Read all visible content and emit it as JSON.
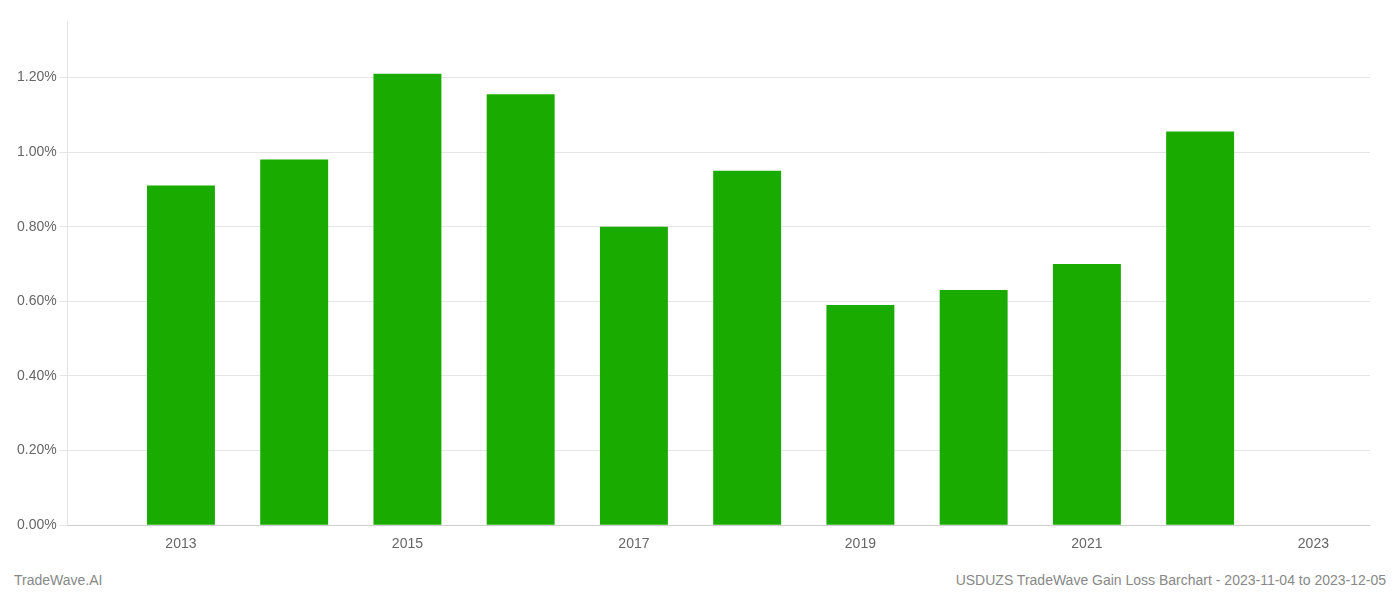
{
  "chart_data": {
    "type": "bar",
    "x": [
      2013,
      2014,
      2015,
      2016,
      2017,
      2018,
      2019,
      2020,
      2021,
      2022
    ],
    "values": [
      0.0091,
      0.0098,
      0.0121,
      0.01155,
      0.008,
      0.0095,
      0.0059,
      0.0063,
      0.007,
      0.01055
    ],
    "color": "#1aab00",
    "xlim": [
      2012.0,
      2023.5
    ],
    "xticks": [
      2013,
      2015,
      2017,
      2019,
      2021,
      2023
    ],
    "ylim": [
      0,
      0.0135
    ],
    "yticks": [
      {
        "value": 0.0,
        "label": "0.00%"
      },
      {
        "value": 0.002,
        "label": "0.20%"
      },
      {
        "value": 0.004,
        "label": "0.40%"
      },
      {
        "value": 0.006,
        "label": "0.60%"
      },
      {
        "value": 0.008,
        "label": "0.80%"
      },
      {
        "value": 0.01,
        "label": "1.00%"
      },
      {
        "value": 0.012,
        "label": "1.20%"
      }
    ],
    "grid": "y",
    "annotations": [
      "TradeWave.AI",
      "USDUZS TradeWave Gain Loss Barchart - 2023-11-04 to 2023-12-05"
    ]
  }
}
